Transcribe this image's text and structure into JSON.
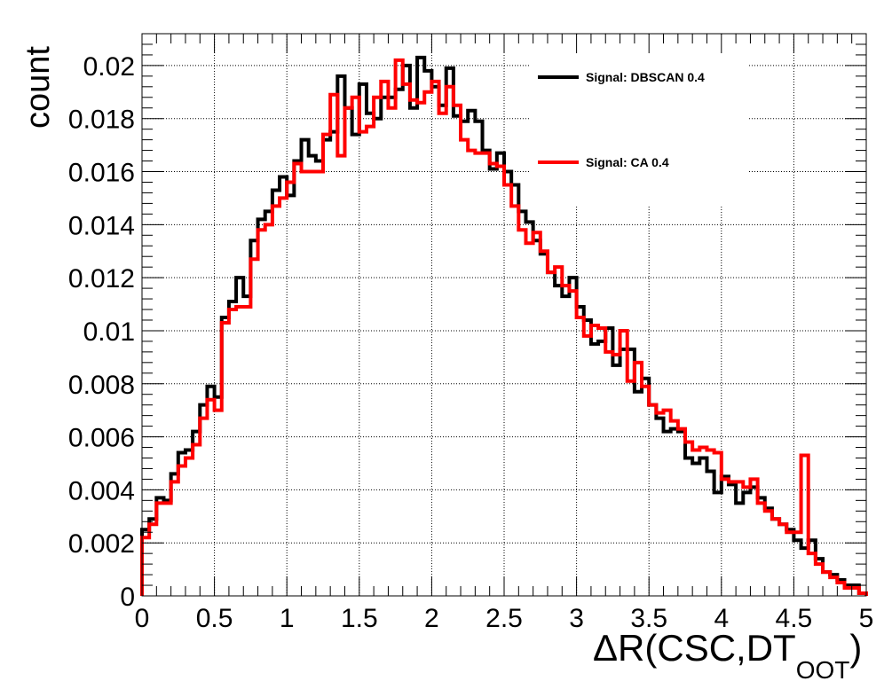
{
  "chart_data": {
    "type": "line",
    "plot_style": "step-histogram",
    "title": "",
    "xlabel_main": "ΔR(CSC,DT",
    "xlabel_sub": "OOT",
    "xlabel_close": ")",
    "ylabel": "count",
    "xlim": [
      0,
      5
    ],
    "ylim": [
      0,
      0.0212
    ],
    "grid": true,
    "legend_position": "top-right",
    "x_ticks": [
      0,
      0.5,
      1,
      1.5,
      2,
      2.5,
      3,
      3.5,
      4,
      4.5,
      5
    ],
    "x_tick_labels": [
      "0",
      "0.5",
      "1",
      "1.5",
      "2",
      "2.5",
      "3",
      "3.5",
      "4",
      "4.5",
      "5"
    ],
    "y_ticks": [
      0,
      0.002,
      0.004,
      0.006,
      0.008,
      0.01,
      0.012,
      0.014,
      0.016,
      0.018,
      0.02
    ],
    "y_tick_labels": [
      "0",
      "0.002",
      "0.004",
      "0.006",
      "0.008",
      "0.01",
      "0.012",
      "0.014",
      "0.016",
      "0.018",
      "0.02"
    ],
    "bin_edges_start": 0,
    "bin_width": 0.05,
    "series": [
      {
        "name": "Signal: DBSCAN 0.4",
        "color": "#000000",
        "values": [
          0.0025,
          0.0029,
          0.0037,
          0.0036,
          0.0046,
          0.0054,
          0.0055,
          0.0062,
          0.0072,
          0.0079,
          0.0075,
          0.0105,
          0.0111,
          0.012,
          0.0113,
          0.0134,
          0.0142,
          0.0145,
          0.0153,
          0.0158,
          0.0151,
          0.0164,
          0.0172,
          0.0166,
          0.0164,
          0.0172,
          0.0175,
          0.0196,
          0.0184,
          0.0174,
          0.0193,
          0.0182,
          0.018,
          0.0188,
          0.0188,
          0.0191,
          0.02,
          0.0184,
          0.0203,
          0.0198,
          0.0192,
          0.0185,
          0.0199,
          0.0181,
          0.0179,
          0.0183,
          0.0179,
          0.0168,
          0.0161,
          0.0167,
          0.016,
          0.0155,
          0.0145,
          0.0141,
          0.0134,
          0.0129,
          0.0122,
          0.0117,
          0.0113,
          0.012,
          0.0109,
          0.0104,
          0.0095,
          0.0096,
          0.0101,
          0.0087,
          0.0093,
          0.0093,
          0.0077,
          0.0082,
          0.0072,
          0.0067,
          0.0062,
          0.0063,
          0.0062,
          0.0052,
          0.005,
          0.0052,
          0.0047,
          0.0039,
          0.0045,
          0.0042,
          0.0035,
          0.0039,
          0.0041,
          0.0037,
          0.0033,
          0.0029,
          0.0027,
          0.0025,
          0.0021,
          0.0018,
          0.0021,
          0.0014,
          0.0009,
          0.0008,
          0.0006,
          0.0004,
          0.0004,
          0.0001
        ]
      },
      {
        "name": "Signal: CA 0.4",
        "color": "#ff0000",
        "values": [
          0.0022,
          0.0027,
          0.0035,
          0.0035,
          0.0043,
          0.0049,
          0.0052,
          0.0057,
          0.0067,
          0.0074,
          0.007,
          0.0103,
          0.0108,
          0.0109,
          0.0109,
          0.0127,
          0.0138,
          0.014,
          0.0147,
          0.015,
          0.0156,
          0.0163,
          0.016,
          0.016,
          0.016,
          0.0174,
          0.0189,
          0.0166,
          0.0184,
          0.0188,
          0.0175,
          0.0177,
          0.0188,
          0.0194,
          0.0184,
          0.0202,
          0.0193,
          0.0187,
          0.0186,
          0.019,
          0.0194,
          0.0182,
          0.0192,
          0.0185,
          0.0172,
          0.0168,
          0.0167,
          0.0167,
          0.0163,
          0.0162,
          0.0155,
          0.0147,
          0.0138,
          0.0133,
          0.0137,
          0.013,
          0.0122,
          0.0124,
          0.0117,
          0.0115,
          0.0105,
          0.0098,
          0.0102,
          0.0101,
          0.0092,
          0.0091,
          0.01,
          0.0081,
          0.0088,
          0.0079,
          0.0072,
          0.0069,
          0.007,
          0.0066,
          0.0063,
          0.0058,
          0.0055,
          0.0056,
          0.0055,
          0.0054,
          0.0044,
          0.0043,
          0.0043,
          0.0041,
          0.0044,
          0.0035,
          0.0032,
          0.0029,
          0.0027,
          0.0024,
          0.0024,
          0.0053,
          0.0016,
          0.0012,
          0.0009,
          0.0007,
          0.0005,
          0.0003,
          0.0003,
          0.0001
        ]
      }
    ]
  }
}
